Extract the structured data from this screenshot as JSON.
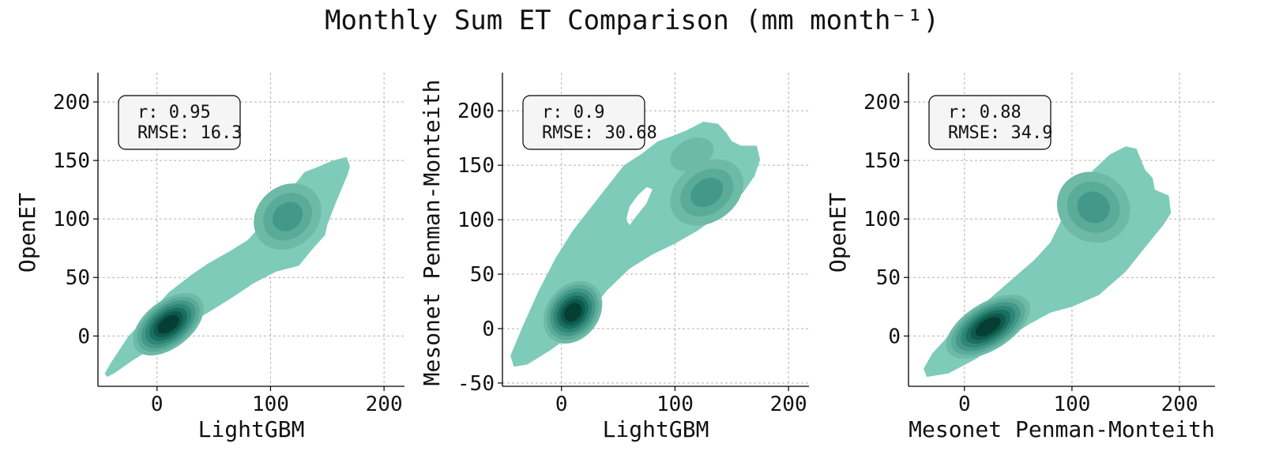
{
  "figure": {
    "title": "Monthly Sum ET Comparison (mm month⁻¹)"
  },
  "palette": {
    "levels": [
      "#7fcbb9",
      "#6dbaa7",
      "#5aab98",
      "#43988a",
      "#2e8677",
      "#1b6e60",
      "#0e5a4c",
      "#053f33"
    ]
  },
  "chart_data": [
    {
      "type": "kde-contour",
      "xlabel": "LightGBM",
      "ylabel": "OpenET",
      "xlim": [
        -52,
        218
      ],
      "ylim": [
        -43,
        225
      ],
      "xticks": [
        0,
        100,
        200
      ],
      "yticks": [
        0,
        50,
        100,
        150,
        200
      ],
      "grid": true,
      "stats_box": {
        "placement": "top-left",
        "lines": [
          "r: 0.95",
          "RMSE: 16.3"
        ]
      },
      "outline": [
        [
          -44,
          -35
        ],
        [
          -38,
          -32
        ],
        [
          -20,
          -20
        ],
        [
          0,
          -8
        ],
        [
          20,
          5
        ],
        [
          40,
          17
        ],
        [
          65,
          32
        ],
        [
          85,
          45
        ],
        [
          105,
          55
        ],
        [
          125,
          60
        ],
        [
          135,
          72
        ],
        [
          145,
          83
        ],
        [
          148,
          86
        ],
        [
          150,
          95
        ],
        [
          158,
          115
        ],
        [
          168,
          138
        ],
        [
          170,
          145
        ],
        [
          167,
          153
        ],
        [
          155,
          150
        ],
        [
          150,
          148
        ],
        [
          143,
          145
        ],
        [
          130,
          140
        ],
        [
          120,
          128
        ],
        [
          110,
          116
        ],
        [
          95,
          98
        ],
        [
          80,
          82
        ],
        [
          65,
          73
        ],
        [
          45,
          62
        ],
        [
          30,
          52
        ],
        [
          10,
          37
        ],
        [
          -5,
          20
        ],
        [
          -25,
          0
        ],
        [
          -40,
          -22
        ],
        [
          -46,
          -32
        ]
      ],
      "cores": [
        {
          "x": 10,
          "y": 10,
          "sx": 36,
          "sy": 20,
          "angle": 38,
          "levels": 8
        },
        {
          "x": 115,
          "y": 102,
          "sx": 32,
          "sy": 26,
          "angle": 42,
          "levels": 3
        }
      ]
    },
    {
      "type": "kde-contour",
      "xlabel": "LightGBM",
      "ylabel": "Mesonet Penman-Monteith",
      "xlim": [
        -52,
        218
      ],
      "ylim": [
        -53,
        235
      ],
      "xticks": [
        0,
        100,
        200
      ],
      "yticks": [
        -50,
        0,
        50,
        100,
        150,
        200
      ],
      "grid": true,
      "stats_box": {
        "placement": "top-left",
        "lines": [
          "r: 0.9",
          "RMSE: 30.68"
        ]
      },
      "outline": [
        [
          -42,
          -35
        ],
        [
          -30,
          -33
        ],
        [
          -10,
          -20
        ],
        [
          10,
          -5
        ],
        [
          25,
          15
        ],
        [
          40,
          35
        ],
        [
          60,
          55
        ],
        [
          80,
          68
        ],
        [
          100,
          78
        ],
        [
          120,
          90
        ],
        [
          140,
          105
        ],
        [
          160,
          125
        ],
        [
          170,
          140
        ],
        [
          175,
          155
        ],
        [
          172,
          168
        ],
        [
          158,
          168
        ],
        [
          150,
          172
        ],
        [
          145,
          180
        ],
        [
          138,
          188
        ],
        [
          125,
          190
        ],
        [
          110,
          182
        ],
        [
          98,
          177
        ],
        [
          85,
          172
        ],
        [
          70,
          160
        ],
        [
          55,
          150
        ],
        [
          40,
          130
        ],
        [
          25,
          110
        ],
        [
          10,
          90
        ],
        [
          -5,
          65
        ],
        [
          -20,
          35
        ],
        [
          -35,
          0
        ],
        [
          -45,
          -25
        ]
      ],
      "holes": [
        [
          [
            60,
            95
          ],
          [
            65,
            102
          ],
          [
            75,
            115
          ],
          [
            80,
            128
          ],
          [
            75,
            130
          ],
          [
            67,
            122
          ],
          [
            60,
            112
          ],
          [
            57,
            100
          ]
        ]
      ],
      "cores": [
        {
          "x": 10,
          "y": 15,
          "sx": 30,
          "sy": 24,
          "angle": 52,
          "levels": 8
        },
        {
          "x": 128,
          "y": 125,
          "sx": 35,
          "sy": 27,
          "angle": 35,
          "levels": 3
        },
        {
          "x": 115,
          "y": 160,
          "sx": 20,
          "sy": 14,
          "angle": 25,
          "levels": 1
        }
      ]
    },
    {
      "type": "kde-contour",
      "xlabel": "Mesonet Penman-Monteith",
      "ylabel": "OpenET",
      "xlim": [
        -52,
        233
      ],
      "ylim": [
        -43,
        225
      ],
      "xticks": [
        0,
        100,
        200
      ],
      "yticks": [
        0,
        50,
        100,
        150,
        200
      ],
      "grid": true,
      "stats_box": {
        "placement": "top-left",
        "lines": [
          "r: 0.88",
          "RMSE: 34.9"
        ]
      },
      "outline": [
        [
          -35,
          -35
        ],
        [
          -15,
          -32
        ],
        [
          10,
          -20
        ],
        [
          35,
          -5
        ],
        [
          60,
          10
        ],
        [
          80,
          20
        ],
        [
          100,
          25
        ],
        [
          125,
          35
        ],
        [
          150,
          55
        ],
        [
          170,
          78
        ],
        [
          185,
          95
        ],
        [
          192,
          105
        ],
        [
          190,
          120
        ],
        [
          177,
          125
        ],
        [
          175,
          135
        ],
        [
          168,
          142
        ],
        [
          160,
          160
        ],
        [
          150,
          162
        ],
        [
          135,
          155
        ],
        [
          120,
          142
        ],
        [
          108,
          130
        ],
        [
          95,
          108
        ],
        [
          80,
          80
        ],
        [
          65,
          65
        ],
        [
          40,
          45
        ],
        [
          15,
          25
        ],
        [
          -10,
          5
        ],
        [
          -30,
          -15
        ],
        [
          -38,
          -28
        ]
      ],
      "cores": [
        {
          "x": 22,
          "y": 8,
          "sx": 44,
          "sy": 20,
          "angle": 32,
          "levels": 8
        },
        {
          "x": 120,
          "y": 110,
          "sx": 32,
          "sy": 32,
          "angle": 55,
          "levels": 3
        }
      ]
    }
  ]
}
